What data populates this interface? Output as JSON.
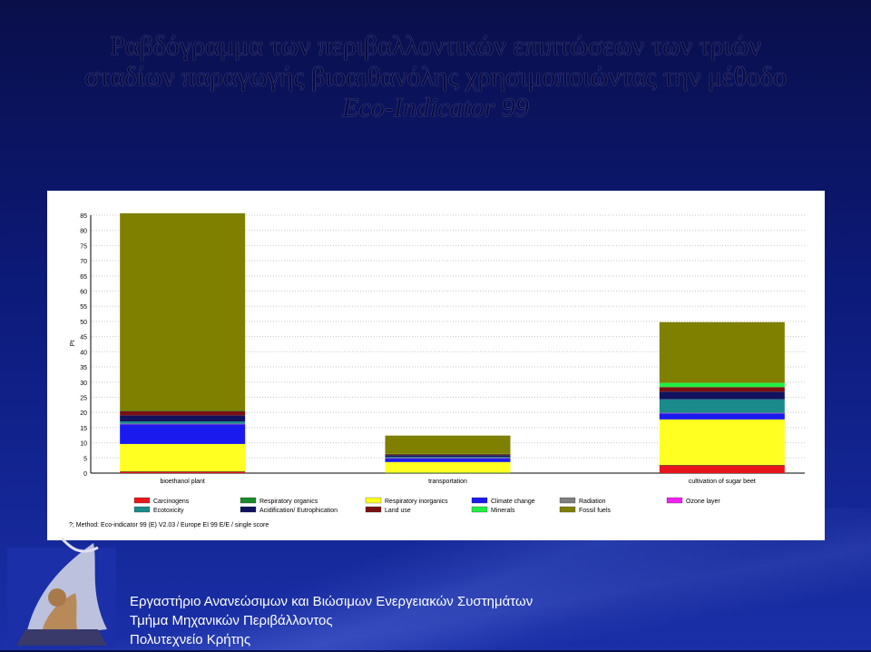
{
  "slide": {
    "title_line1": "Ραβδόγραμμα των περιβαλλοντικών επιπτώσεων των τριών",
    "title_line2": "σταδίων παραγωγής βιοαιθανόλης χρησιμοποιώντας την μέθοδο",
    "title_line3": "Eco-Indicator 99",
    "footer_line1": "Εργαστήριο Ανανεώσιμων και Βιώσιμων Ενεργειακών Συστημάτων",
    "footer_line2": "Τμήμα Μηχανικών Περιβάλλοντος",
    "footer_line3": "Πολυτεχνείο Κρήτης"
  },
  "chart_data": {
    "type": "bar",
    "stacked": true,
    "ylabel": "Pt",
    "ylim": [
      0,
      85
    ],
    "yticks": [
      0,
      5,
      10,
      15,
      20,
      25,
      30,
      35,
      40,
      45,
      50,
      55,
      60,
      65,
      70,
      75,
      80,
      85
    ],
    "grid": true,
    "categories": [
      "bioethanol plant",
      "transportation",
      "cultivation of sugar beet"
    ],
    "series": [
      {
        "name": "Carcinogens",
        "color": "#e8161c",
        "values": [
          0.5,
          0.1,
          2.6
        ]
      },
      {
        "name": "Respiratory organics",
        "color": "#1a8a2a",
        "values": [
          0.1,
          0.05,
          0.1
        ]
      },
      {
        "name": "Respiratory inorganics",
        "color": "#ffff22",
        "values": [
          9.0,
          3.5,
          15.0
        ]
      },
      {
        "name": "Climate change",
        "color": "#1a1aee",
        "values": [
          6.5,
          1.2,
          2.0
        ]
      },
      {
        "name": "Radiation",
        "color": "#7f7f7f",
        "values": [
          0.1,
          0.05,
          0.1
        ]
      },
      {
        "name": "Ozone layer",
        "color": "#ee22ee",
        "values": [
          0.05,
          0.02,
          0.05
        ]
      },
      {
        "name": "Ecotoxicity",
        "color": "#1a8a8a",
        "values": [
          0.8,
          0.4,
          4.5
        ]
      },
      {
        "name": "Acidification/ Eutrophication",
        "color": "#12125e",
        "values": [
          2.0,
          0.6,
          2.5
        ]
      },
      {
        "name": "Land use",
        "color": "#7a1010",
        "values": [
          1.5,
          0.4,
          1.5
        ]
      },
      {
        "name": "Minerals",
        "color": "#22ee44",
        "values": [
          0.1,
          0.05,
          1.4
        ]
      },
      {
        "name": "Fossil fuels",
        "color": "#7f7f00",
        "values": [
          65.0,
          6.0,
          20.0
        ]
      }
    ],
    "footnote": "?;  Method: Eco-indicator 99 (E) V2.03 /  Europe EI 99 E/E / single score"
  }
}
